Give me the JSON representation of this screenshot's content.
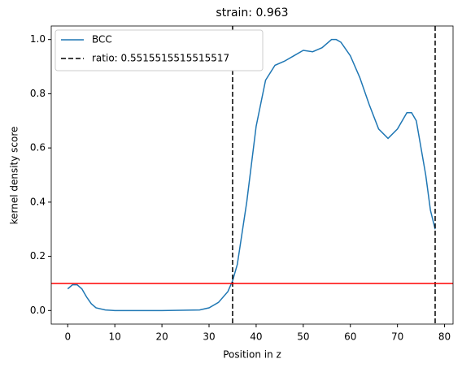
{
  "chart_data": {
    "type": "line",
    "title": "strain: 0.963",
    "x_label": "Position in z",
    "y_label": "kernel density score",
    "x": [
      0,
      1,
      2,
      3,
      4,
      5,
      6,
      8,
      10,
      20,
      28,
      30,
      32,
      34,
      35,
      36,
      38,
      40,
      42,
      44,
      46,
      48,
      50,
      52,
      54,
      56,
      57,
      58,
      60,
      62,
      64,
      66,
      68,
      70,
      72,
      73,
      74,
      76,
      77,
      78
    ],
    "series": [
      {
        "name": "BCC",
        "color": "#1f77b4",
        "values": [
          0.08,
          0.095,
          0.095,
          0.08,
          0.05,
          0.025,
          0.01,
          0.002,
          0,
          0,
          0.002,
          0.01,
          0.03,
          0.07,
          0.11,
          0.17,
          0.4,
          0.68,
          0.85,
          0.905,
          0.92,
          0.94,
          0.96,
          0.955,
          0.97,
          1.0,
          1.0,
          0.99,
          0.94,
          0.86,
          0.76,
          0.67,
          0.635,
          0.67,
          0.73,
          0.73,
          0.7,
          0.5,
          0.37,
          0.3
        ]
      }
    ],
    "vlines": {
      "name": "ratio: 0.5515515515515517",
      "color": "#000000",
      "x": [
        35,
        78
      ]
    },
    "hline": {
      "y": 0.1,
      "color": "#ff0000"
    },
    "xlim": [
      -3.5,
      81.8
    ],
    "xticks": [
      0,
      10,
      20,
      30,
      40,
      50,
      60,
      70,
      80
    ],
    "ylim": [
      -0.05,
      1.05
    ],
    "yticks": [
      {
        "value": 0,
        "label": "0.0"
      },
      {
        "value": 0.2,
        "label": "0.2"
      },
      {
        "value": 0.4,
        "label": "0.4"
      },
      {
        "value": 0.6,
        "label": "0.6"
      },
      {
        "value": 0.8,
        "label": "0.8"
      },
      {
        "value": 1,
        "label": "1.0"
      }
    ],
    "legend": "upper left"
  }
}
